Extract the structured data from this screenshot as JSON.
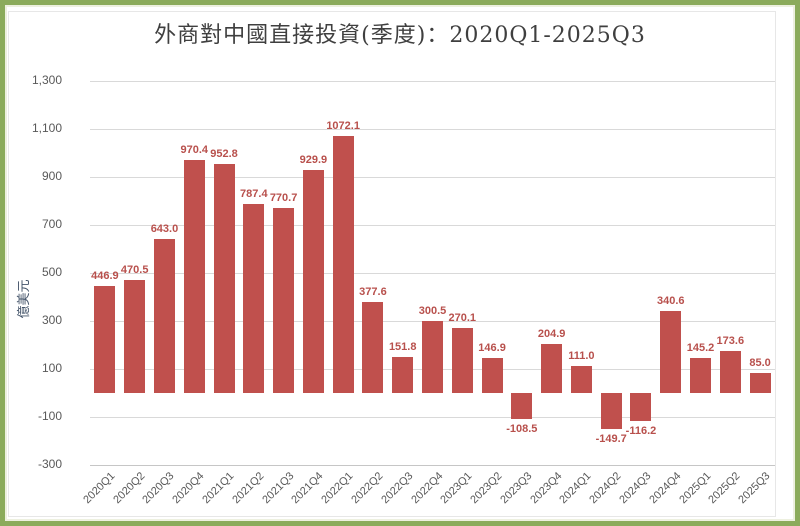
{
  "frame": {
    "outer_border_color": "#8bab5b",
    "inner_border_color": "#edf0df"
  },
  "chart_data": {
    "type": "bar",
    "title": "外商對中國直接投資(季度)：2020Q1-2025Q3",
    "ylabel": "億美元",
    "xlabel": "",
    "categories": [
      "2020Q1",
      "2020Q2",
      "2020Q3",
      "2020Q4",
      "2021Q1",
      "2021Q2",
      "2021Q3",
      "2021Q4",
      "2022Q1",
      "2022Q2",
      "2022Q3",
      "2022Q4",
      "2023Q1",
      "2023Q2",
      "2023Q3",
      "2023Q4",
      "2024Q1",
      "2024Q2",
      "2024Q3",
      "2024Q4",
      "2025Q1",
      "2025Q2",
      "2025Q3"
    ],
    "values": [
      446.9,
      470.5,
      643.0,
      970.4,
      952.8,
      787.4,
      770.7,
      929.9,
      1072.1,
      377.6,
      151.8,
      300.5,
      270.1,
      146.9,
      -108.5,
      204.9,
      111.0,
      -149.7,
      -116.2,
      340.6,
      145.2,
      173.6,
      85.0
    ],
    "ylim": [
      -300,
      1300
    ],
    "ytick_step": 200,
    "yticks": [
      "1,300",
      "1,100",
      "900",
      "700",
      "500",
      "300",
      "100",
      "-100",
      "-300"
    ],
    "grid": true,
    "legend": "none",
    "bar_color": "#c0504d",
    "value_label_color": "#b8504c",
    "grid_color": "#d9d9d9",
    "axis_text_color": "#595959",
    "title_color": "#3f3f3f",
    "ylabel_color": "#44546a"
  }
}
